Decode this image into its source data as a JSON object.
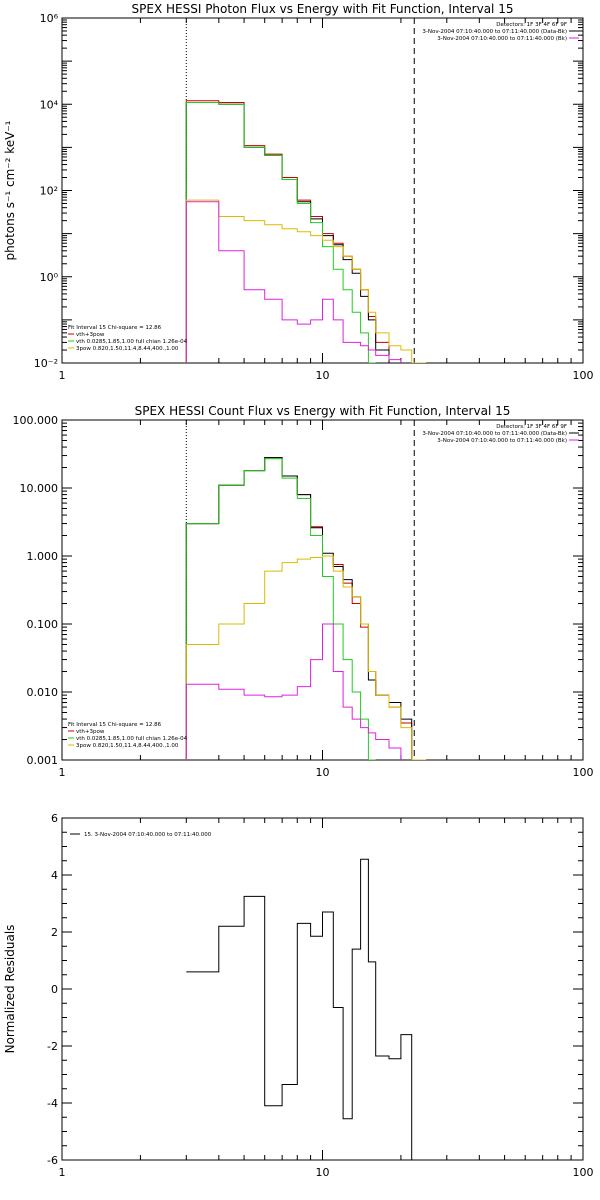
{
  "chart_data": [
    {
      "type": "line",
      "title": "SPEX HESSI Photon Flux vs Energy with Fit Function, Interval 15",
      "ylabel": "photons s⁻¹ cm⁻² keV⁻¹",
      "xscale": "log",
      "yscale": "log",
      "xlim": [
        1,
        100
      ],
      "ylim": [
        0.01,
        1000000
      ],
      "xticks": [
        {
          "v": 1,
          "label": "1"
        },
        {
          "v": 10,
          "label": "10"
        },
        {
          "v": 100,
          "label": "100"
        }
      ],
      "yticks": [
        {
          "v": 0.01,
          "label": "10⁻²"
        },
        {
          "v": 1,
          "label": "10⁰"
        },
        {
          "v": 100,
          "label": "10²"
        },
        {
          "v": 10000,
          "label": "10⁴"
        },
        {
          "v": 1000000,
          "label": "10⁶"
        }
      ],
      "edges": [
        3,
        4,
        5,
        6,
        7,
        8,
        9,
        10,
        11,
        12,
        13,
        14,
        15,
        16,
        18,
        20,
        22,
        25
      ],
      "vlines": [
        {
          "x": 3,
          "style": "dotted"
        },
        {
          "x": 22.5,
          "style": "dashed"
        }
      ],
      "series": [
        {
          "name": "vth+3pow",
          "color": "#cc0000",
          "values": [
            12000,
            11000,
            1100,
            700,
            200,
            60,
            25,
            10,
            6,
            3,
            1.5,
            0.5,
            0.12,
            0.03,
            0.01,
            0.01,
            null
          ]
        },
        {
          "name": "data",
          "color": "#000000",
          "values": [
            11000,
            10000,
            1000,
            650,
            180,
            55,
            22,
            9,
            5.5,
            2.5,
            1.2,
            0.35,
            0.1,
            0.02,
            0.01,
            0.01,
            null
          ]
        },
        {
          "name": "vth",
          "color": "#22cc22",
          "values": [
            11000,
            10000,
            1000,
            650,
            180,
            50,
            18,
            5,
            1.5,
            0.5,
            0.15,
            0.05,
            0.01,
            null,
            null,
            null,
            null
          ]
        },
        {
          "name": "3pow",
          "color": "#ddbb00",
          "values": [
            60,
            25,
            20,
            16,
            13,
            11,
            9,
            7,
            5,
            3,
            1.5,
            0.5,
            0.15,
            0.05,
            0.025,
            0.02,
            0.01
          ]
        },
        {
          "name": "background",
          "color": "#dd22dd",
          "values": [
            55,
            4,
            0.5,
            0.3,
            0.1,
            0.08,
            0.1,
            0.3,
            0.1,
            0.03,
            0.03,
            0.025,
            0.02,
            0.015,
            0.012,
            null,
            null
          ]
        }
      ],
      "legend_top": [
        "Detectors: 1F 3F 4F 6F 9F",
        "3-Nov-2004 07:10:40.000 to 07:11:40.000 (Data-Bk)",
        "3-Nov-2004 07:10:40.000 to 07:11:40.000 (Bk)"
      ],
      "legend_bottom": [
        "Fit Interval 15   Chi-square = 12.86",
        "vth+3pow",
        "vth 0.0285,1.85,1.00  full chian 1.26e-04",
        "3pow 0.820,1.50,11.4,8.44,400.,1.00"
      ]
    },
    {
      "type": "line",
      "title": "SPEX HESSI Count Flux vs Energy with Fit Function, Interval 15",
      "ylabel": "",
      "xscale": "log",
      "yscale": "log",
      "xlim": [
        1,
        100
      ],
      "ylim": [
        0.001,
        100
      ],
      "xticks": [
        {
          "v": 1,
          "label": "1"
        },
        {
          "v": 10,
          "label": "10"
        },
        {
          "v": 100,
          "label": "100"
        }
      ],
      "yticks": [
        {
          "v": 0.001,
          "label": "0.001"
        },
        {
          "v": 0.01,
          "label": "0.010"
        },
        {
          "v": 0.1,
          "label": "0.100"
        },
        {
          "v": 1,
          "label": "1.000"
        },
        {
          "v": 10,
          "label": "10.000"
        },
        {
          "v": 100,
          "label": "100.000"
        }
      ],
      "edges": [
        3,
        4,
        5,
        6,
        7,
        8,
        9,
        10,
        11,
        12,
        13,
        14,
        15,
        16,
        18,
        20,
        22,
        25
      ],
      "vlines": [
        {
          "x": 3,
          "style": "dotted"
        },
        {
          "x": 22.5,
          "style": "dashed"
        }
      ],
      "series": [
        {
          "name": "vth+3pow",
          "color": "#cc0000",
          "values": [
            3,
            11,
            18,
            28,
            15,
            8,
            2.7,
            1,
            0.75,
            0.4,
            0.2,
            0.09,
            0.02,
            0.009,
            0.006,
            0.0035,
            null
          ]
        },
        {
          "name": "data",
          "color": "#000000",
          "values": [
            3,
            11,
            18,
            28,
            15,
            8,
            2.6,
            1.1,
            0.7,
            0.45,
            0.25,
            0.1,
            0.015,
            0.009,
            0.007,
            0.004,
            null
          ]
        },
        {
          "name": "vth",
          "color": "#22cc22",
          "values": [
            3,
            11,
            18,
            27,
            14,
            7,
            2,
            0.5,
            0.1,
            0.03,
            0.01,
            0.004,
            0.001,
            null,
            null,
            null,
            null
          ]
        },
        {
          "name": "3pow",
          "color": "#ddbb00",
          "values": [
            0.05,
            0.1,
            0.2,
            0.6,
            0.8,
            0.9,
            0.95,
            1,
            0.6,
            0.35,
            0.25,
            0.1,
            0.02,
            0.009,
            0.006,
            0.003,
            0.001
          ]
        },
        {
          "name": "background",
          "color": "#dd22dd",
          "values": [
            0.013,
            0.011,
            0.009,
            0.0085,
            0.009,
            0.012,
            0.03,
            0.1,
            0.02,
            0.006,
            0.004,
            0.003,
            0.0025,
            0.002,
            0.0015,
            null,
            null
          ]
        }
      ],
      "legend_top": [
        "Detectors: 1F 3F 4F 6F 9F",
        "3-Nov-2004 07:10:40.000 to 07:11:40.000 (Data-Bk)",
        "3-Nov-2004 07:10:40.000 to 07:11:40.000 (Bk)"
      ],
      "legend_bottom": [
        "Fit Interval 15   Chi-square = 12.86",
        "vth+3pow",
        "vth 0.0285,1.85,1.00  full chian 1.26e-04",
        "3pow 0.820,1.50,11.4,8.44,400.,1.00"
      ]
    },
    {
      "type": "line",
      "title": "",
      "ylabel": "Normalized Residuals",
      "xscale": "log",
      "yscale": "linear",
      "xlim": [
        1,
        100
      ],
      "ylim": [
        -6,
        6
      ],
      "xticks": [
        {
          "v": 1,
          "label": "1"
        },
        {
          "v": 10,
          "label": "10"
        },
        {
          "v": 100,
          "label": "100"
        }
      ],
      "yticks": [
        {
          "v": -6,
          "label": "-6"
        },
        {
          "v": -4,
          "label": "-4"
        },
        {
          "v": -2,
          "label": "-2"
        },
        {
          "v": 0,
          "label": "0"
        },
        {
          "v": 2,
          "label": "2"
        },
        {
          "v": 4,
          "label": "4"
        },
        {
          "v": 6,
          "label": "6"
        }
      ],
      "edges": [
        3,
        4,
        5,
        6,
        7,
        8,
        9,
        10,
        11,
        12,
        13,
        14,
        15,
        16,
        18,
        20,
        22,
        22.5
      ],
      "vlines": [],
      "series": [
        {
          "name": "15.  3-Nov-2004 07:10:40.000 to 07:11:40.000",
          "color": "#000000",
          "values": [
            0.6,
            2.2,
            3.25,
            -4.1,
            -3.35,
            2.3,
            1.85,
            2.7,
            -0.65,
            -4.55,
            1.4,
            4.55,
            0.95,
            -2.35,
            -2.45,
            -1.6,
            -6
          ]
        }
      ],
      "legend_top": [
        "15.  3-Nov-2004 07:10:40.000 to 07:11:40.000"
      ],
      "legend_bottom": []
    }
  ]
}
